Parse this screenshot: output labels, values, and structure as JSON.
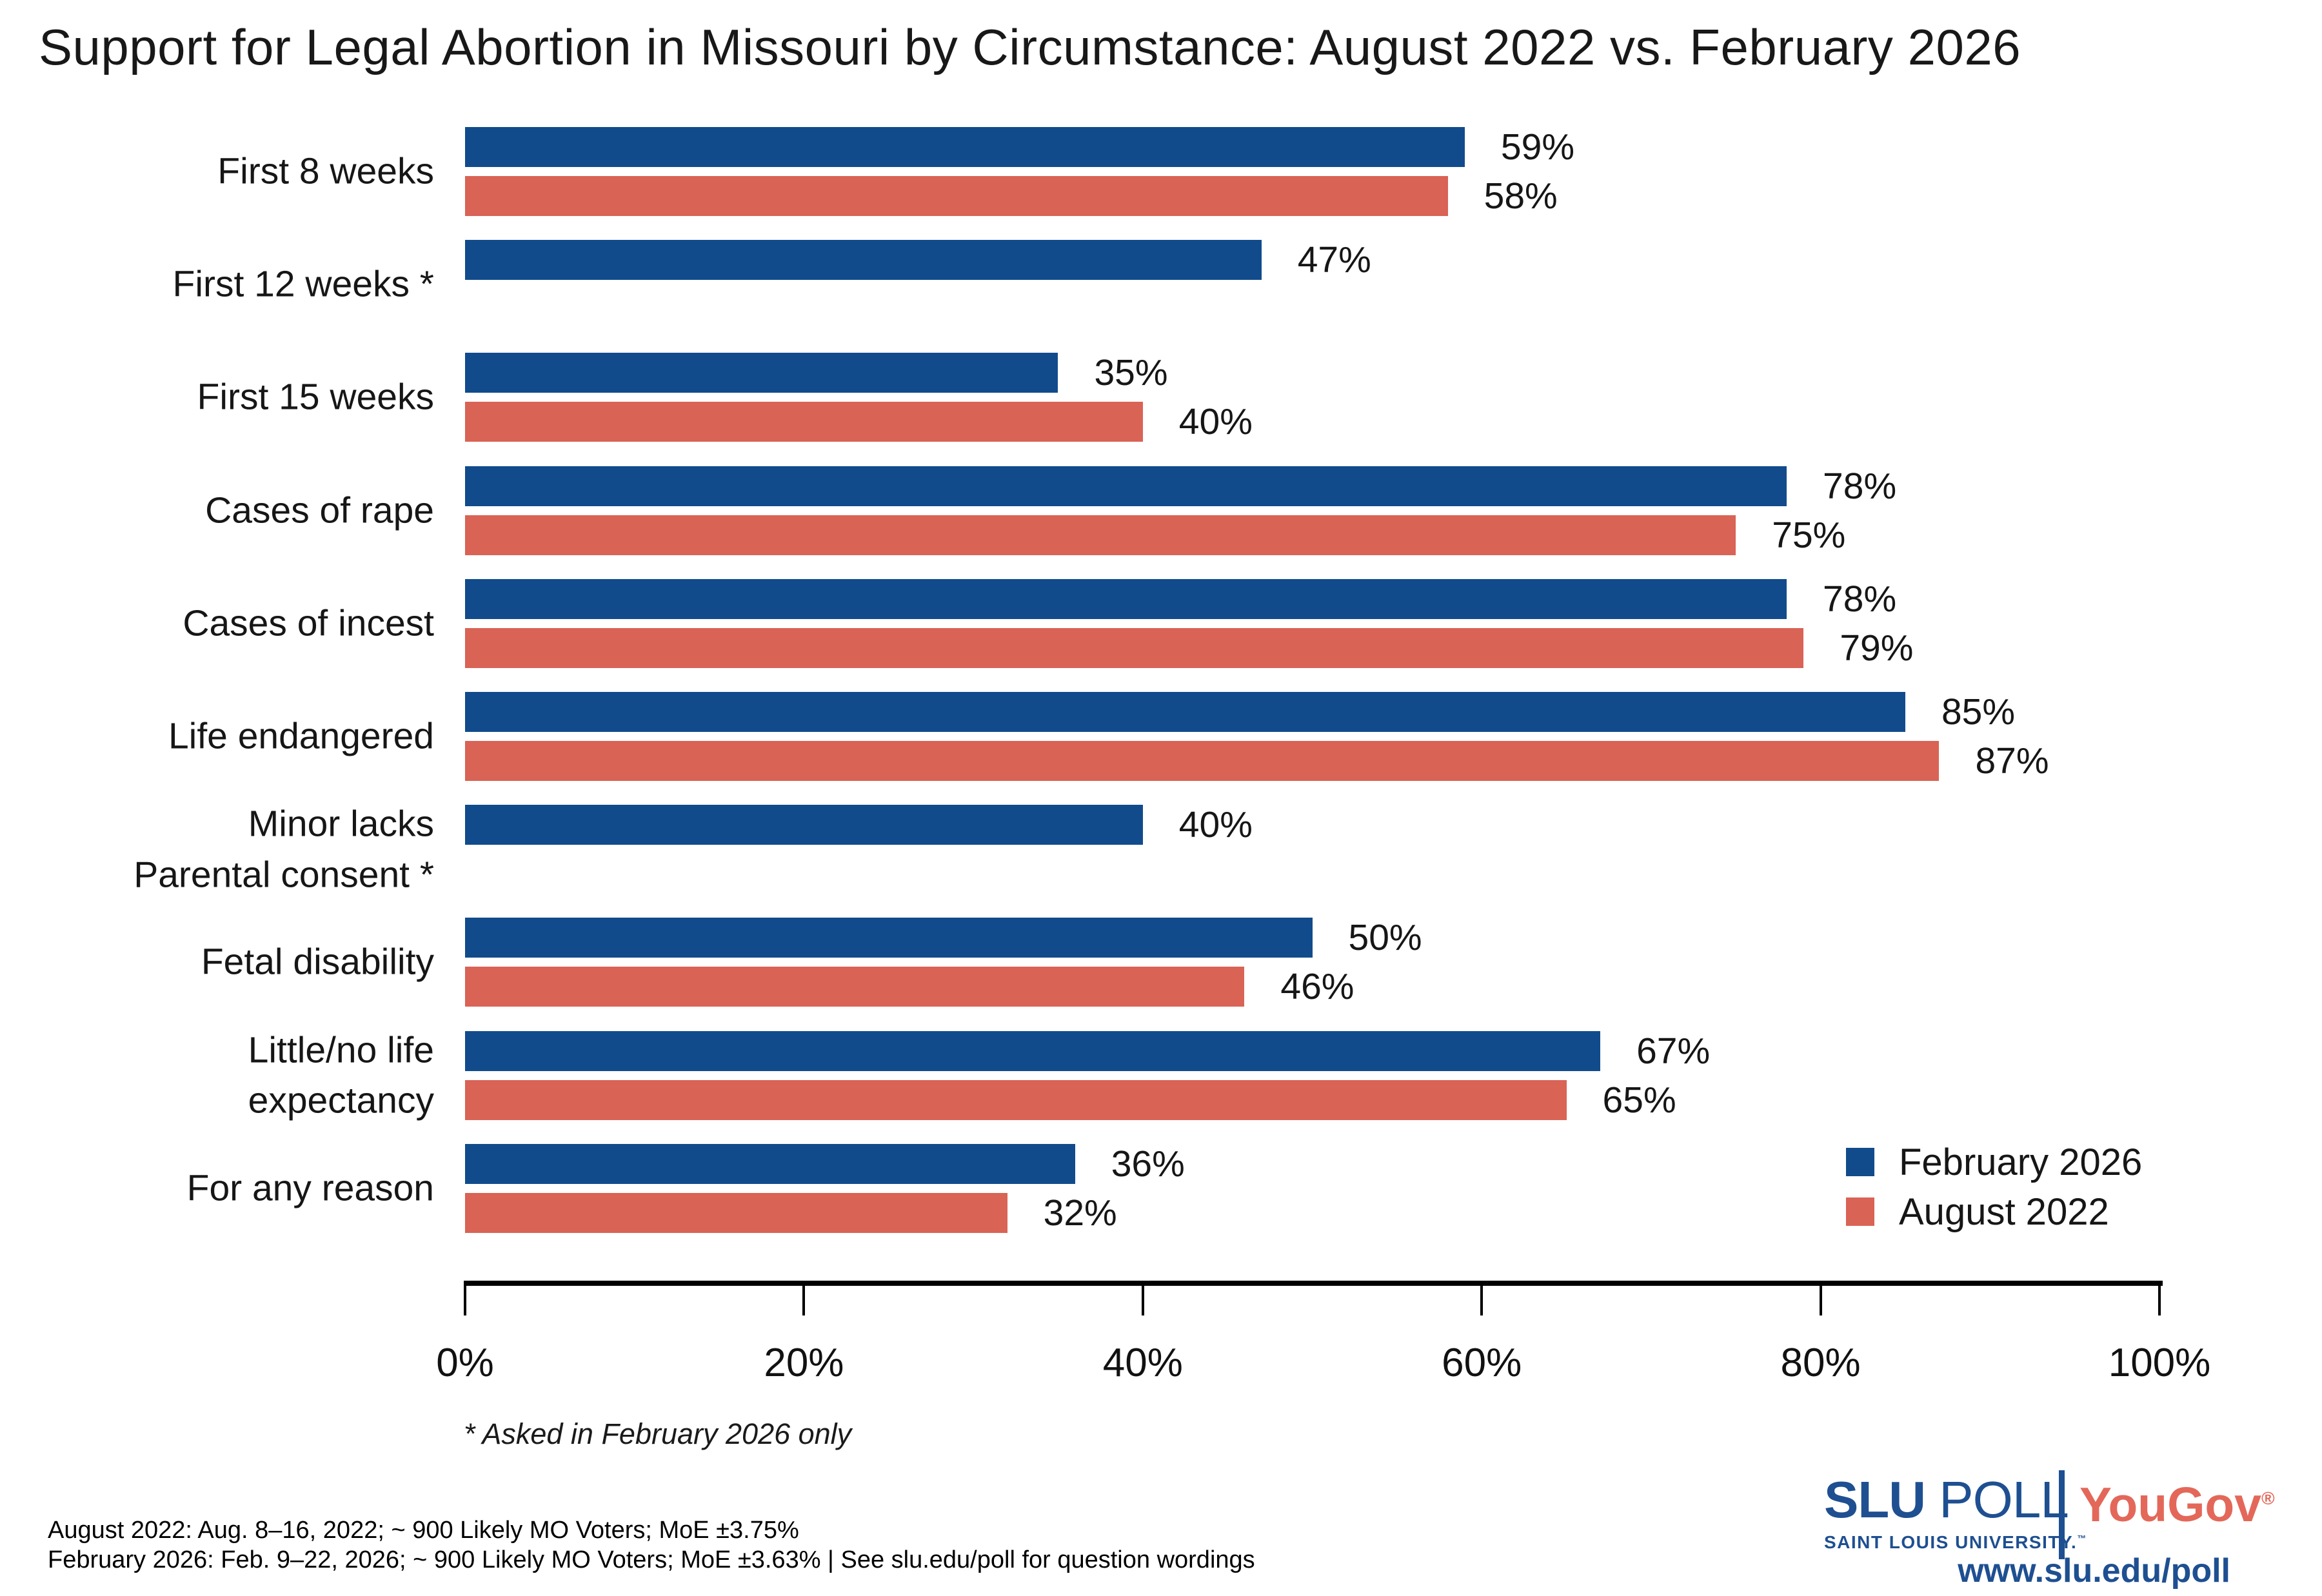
{
  "title": "Support for Legal Abortion in Missouri by Circumstance: August 2022 vs. February 2026",
  "chart_data": {
    "type": "bar",
    "orientation": "horizontal",
    "title": "Support for Legal Abortion in Missouri by Circumstance: August 2022 vs. February 2026",
    "categories": [
      "First 8 weeks",
      "First 12 weeks *",
      "First 15 weeks",
      "Cases of rape",
      "Cases of incest",
      "Life endangered",
      "Minor lacks\nParental consent *",
      "Fetal disability",
      "Little/no life\nexpectancy",
      "For any reason"
    ],
    "series": [
      {
        "name": "February 2026",
        "color": "#114B8C",
        "values": [
          59,
          47,
          35,
          78,
          78,
          85,
          40,
          50,
          67,
          36
        ]
      },
      {
        "name": "August 2022",
        "color": "#D96355",
        "values": [
          58,
          null,
          40,
          75,
          79,
          87,
          null,
          46,
          65,
          32
        ]
      }
    ],
    "value_suffix": "%",
    "xlim": [
      0,
      100
    ],
    "x_ticks": [
      "0%",
      "20%",
      "40%",
      "60%",
      "80%",
      "100%"
    ],
    "tick_step_pct": 20,
    "grid": false,
    "legend_position": "bottom-right",
    "footnote": "* Asked in February 2026 only"
  },
  "footer": {
    "line1": "August 2022: Aug. 8–16, 2022; ~ 900 Likely MO Voters; MoE ±3.75%",
    "line2": "February 2026: Feb. 9–22, 2026; ~ 900 Likely MO Voters; MoE ±3.63%  |  See slu.edu/poll for question wordings"
  },
  "branding": {
    "slu": "SLU",
    "poll": "POLL",
    "slu_sub": "SAINT LOUIS UNIVERSITY.",
    "slu_tm": "™",
    "yougov": "YouGov",
    "yougov_reg": "®",
    "url": "www.slu.edu/poll",
    "slu_blue": "#1E4F91",
    "yougov_red": "#E3685A"
  }
}
